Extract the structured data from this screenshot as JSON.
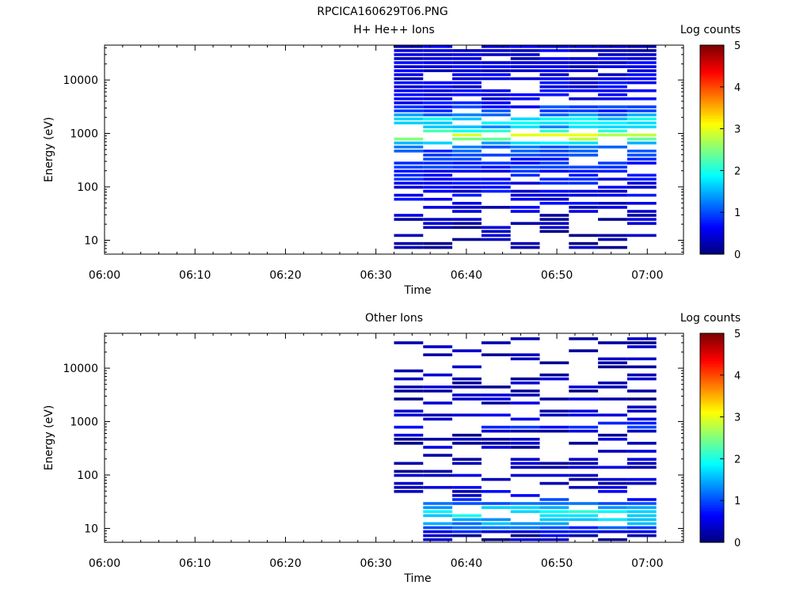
{
  "figure_title": "RPCICA160629T06.PNG",
  "chart_data": [
    {
      "type": "heatmap",
      "title": "H+ He++ Ions",
      "xlabel": "Time",
      "ylabel": "Energy (eV)",
      "x_tick_labels": [
        "06:00",
        "06:10",
        "06:20",
        "06:30",
        "06:40",
        "06:50",
        "07:00"
      ],
      "x_range": [
        "06:00",
        "07:04"
      ],
      "y_tick_labels": [
        "10",
        "100",
        "1000",
        "10000"
      ],
      "y_range": [
        5.5,
        45000
      ],
      "y_scale": "log",
      "data_start": "06:32",
      "data_end": "07:01",
      "colorbar": {
        "title": "Log counts",
        "ticks": [
          "0",
          "1",
          "2",
          "3",
          "4",
          "5"
        ],
        "range": [
          0,
          5
        ]
      },
      "profile": [
        {
          "e": 10,
          "v": 0.15
        },
        {
          "e": 20,
          "v": 0.25
        },
        {
          "e": 30,
          "v": 0.35
        },
        {
          "e": 50,
          "v": 0.5
        },
        {
          "e": 100,
          "v": 0.6
        },
        {
          "e": 200,
          "v": 0.75
        },
        {
          "e": 400,
          "v": 0.9
        },
        {
          "e": 600,
          "v": 1.2
        },
        {
          "e": 800,
          "v": 2.8
        },
        {
          "e": 950,
          "v": 3.0
        },
        {
          "e": 1200,
          "v": 1.4
        },
        {
          "e": 1700,
          "v": 1.9
        },
        {
          "e": 2500,
          "v": 0.9
        },
        {
          "e": 5000,
          "v": 0.6
        },
        {
          "e": 10000,
          "v": 0.5
        },
        {
          "e": 40000,
          "v": 0.4
        }
      ]
    },
    {
      "type": "heatmap",
      "title": "Other Ions",
      "xlabel": "Time",
      "ylabel": "Energy (eV)",
      "x_tick_labels": [
        "06:00",
        "06:10",
        "06:20",
        "06:30",
        "06:40",
        "06:50",
        "07:00"
      ],
      "x_range": [
        "06:00",
        "07:04"
      ],
      "y_tick_labels": [
        "10",
        "100",
        "1000",
        "10000"
      ],
      "y_range": [
        5.5,
        45000
      ],
      "y_scale": "log",
      "data_start": "06:32",
      "data_end": "07:01",
      "colorbar": {
        "title": "Log counts",
        "ticks": [
          "0",
          "1",
          "2",
          "3",
          "4",
          "5"
        ],
        "range": [
          0,
          5
        ]
      },
      "profile": [
        {
          "e": 7,
          "v": 0.2
        },
        {
          "e": 12,
          "v": 1.4
        },
        {
          "e": 15,
          "v": 1.6
        },
        {
          "e": 20,
          "v": 1.9
        },
        {
          "e": 25,
          "v": 1.5
        },
        {
          "e": 40,
          "v": 0.5
        },
        {
          "e": 80,
          "v": 0.3
        },
        {
          "e": 200,
          "v": 0.25
        },
        {
          "e": 700,
          "v": 0.3
        },
        {
          "e": 850,
          "v": 1.3
        },
        {
          "e": 1000,
          "v": 0.4
        },
        {
          "e": 3000,
          "v": 0.2
        },
        {
          "e": 40000,
          "v": 0.15
        }
      ]
    }
  ]
}
